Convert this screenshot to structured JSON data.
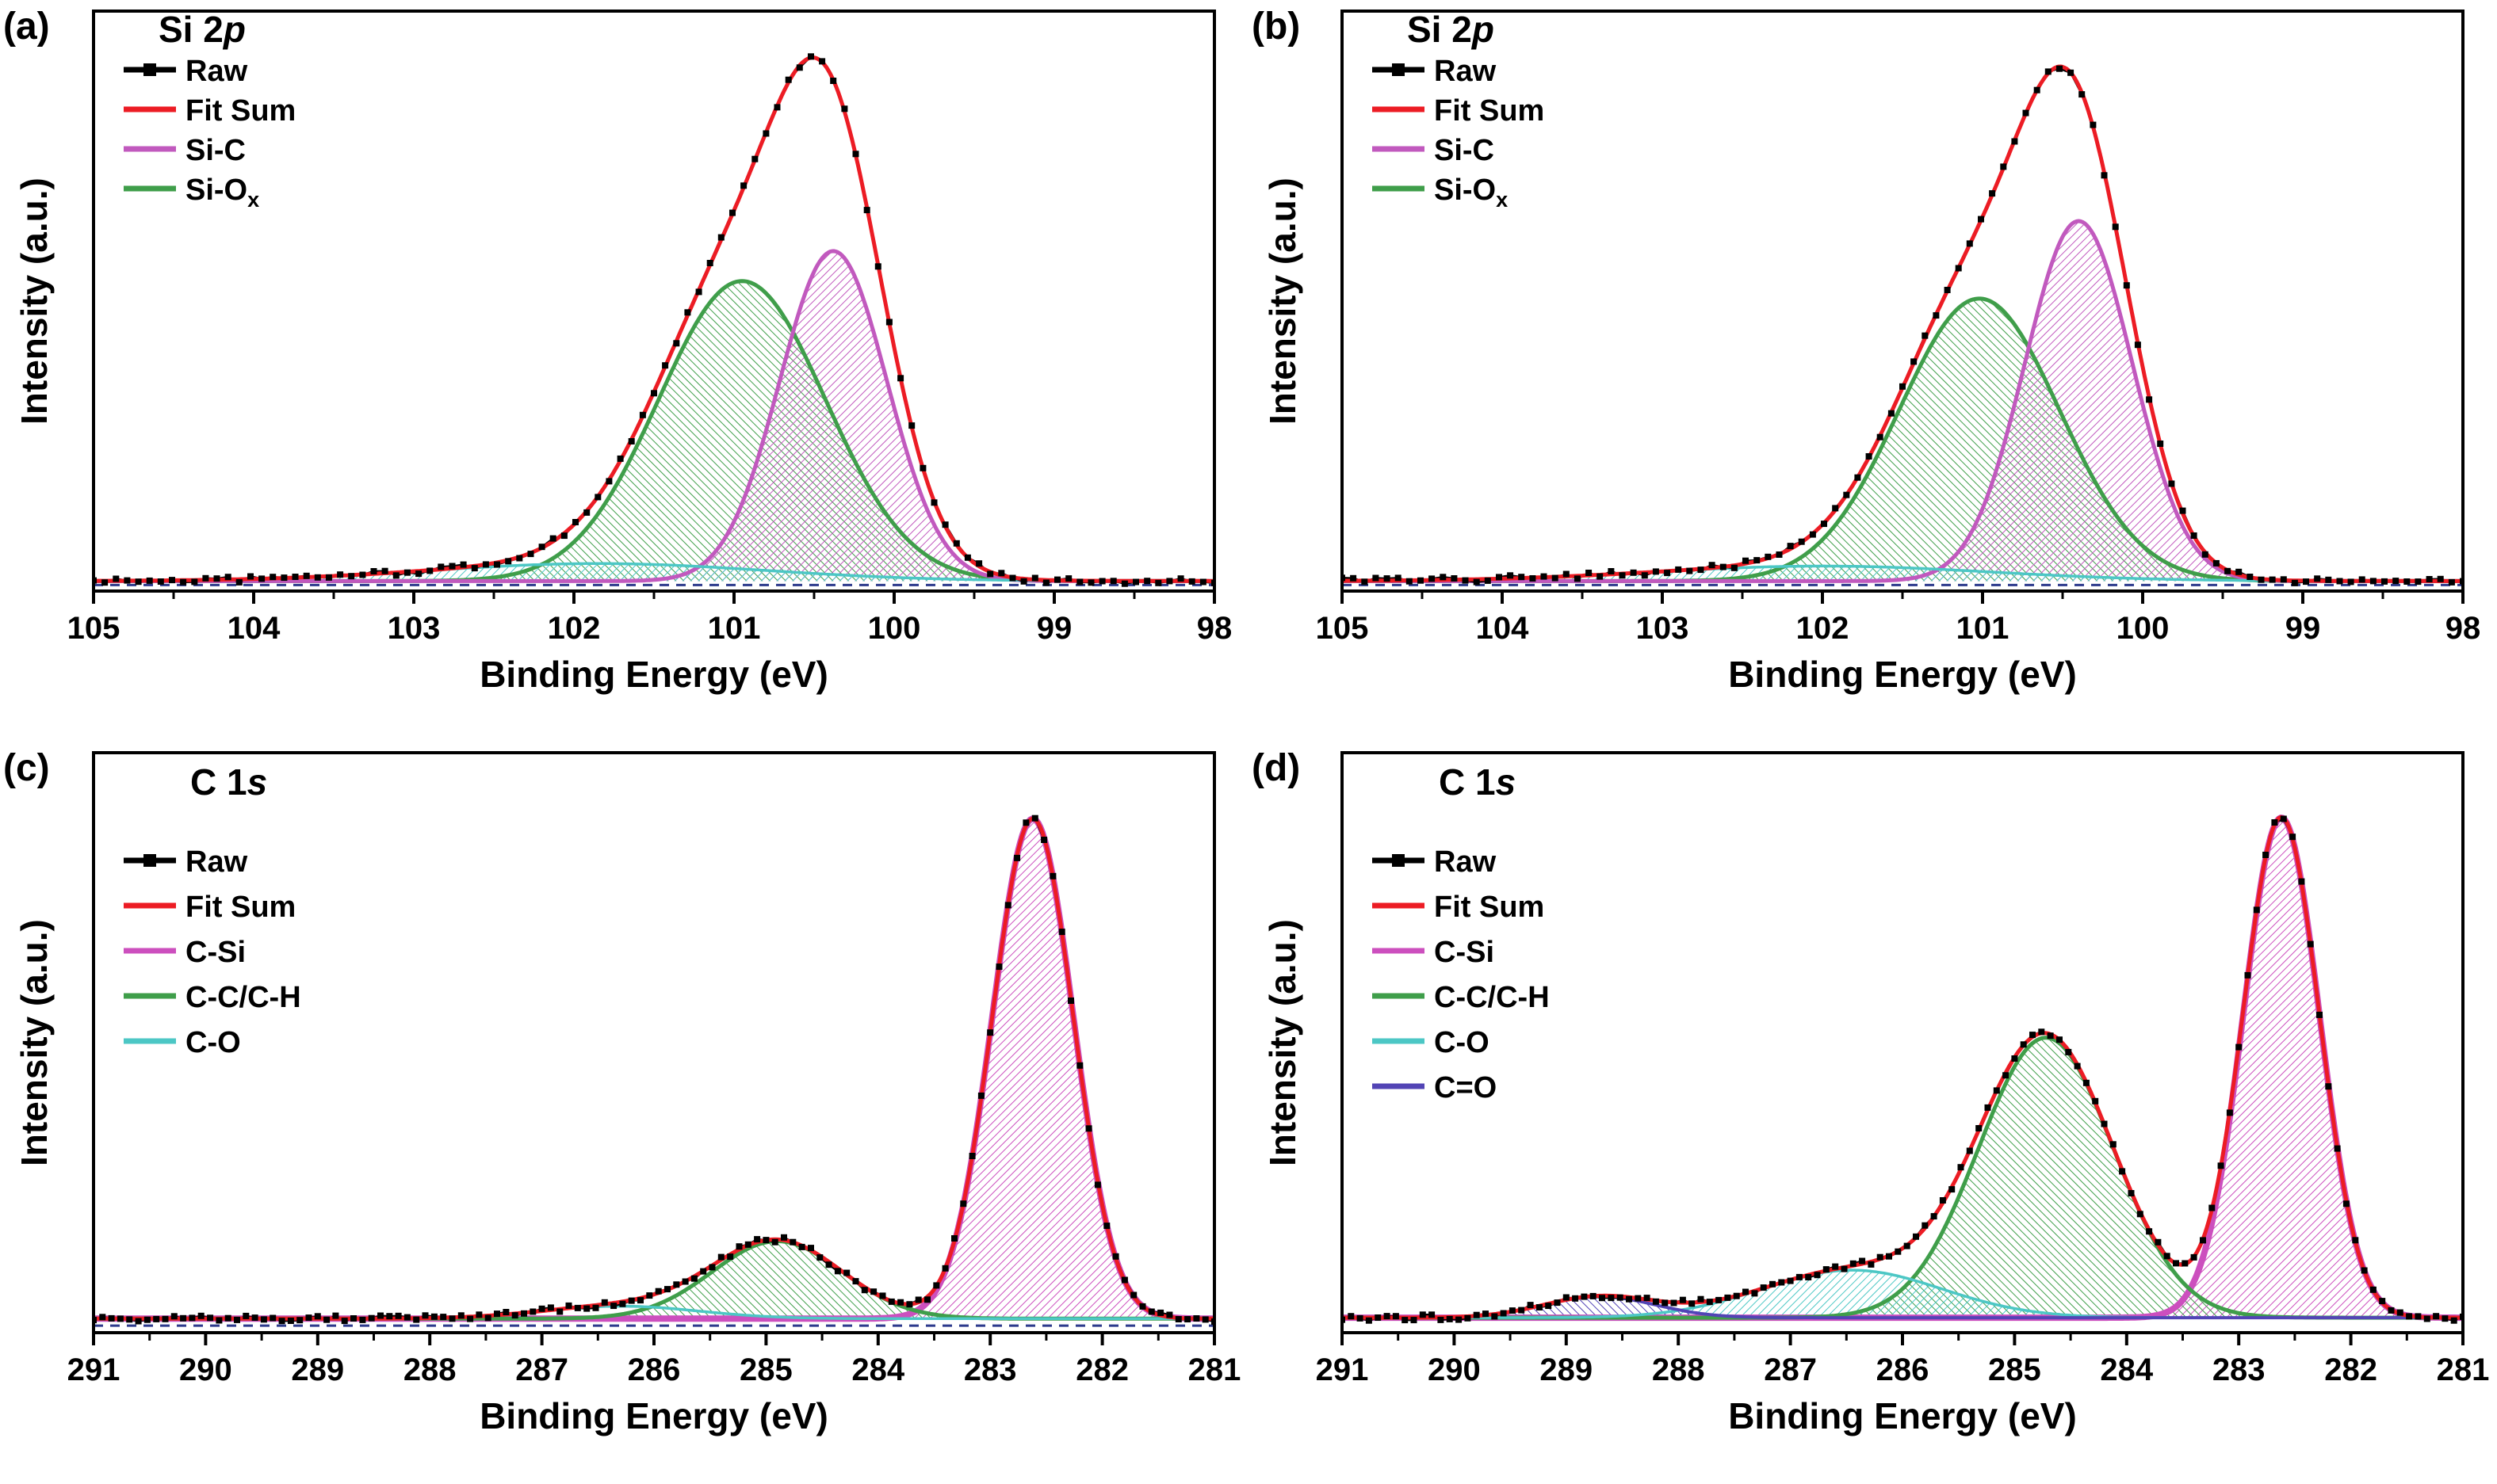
{
  "figure": {
    "background": "#ffffff"
  },
  "chart_data": [
    {
      "id": "a",
      "panel_label": "(a)",
      "type": "line",
      "title_prefix": "Si 2",
      "title_italic": "p",
      "xlabel": "Binding Energy (eV)",
      "ylabel": "Intensity (a.u.)",
      "x_range": [
        105,
        98
      ],
      "x_ticks": [
        105,
        104,
        103,
        102,
        101,
        100,
        99,
        98
      ],
      "x_minor_step": 0.5,
      "ylim": [
        0,
        1.16
      ],
      "baseline": 0.02,
      "fit_color": "#ec1c24",
      "raw": {
        "color": "#000000",
        "step": 0.07,
        "noise": 0.006
      },
      "extra_baseline": {
        "color": "#2c3a8c",
        "value": 0.012,
        "dash": "12,9"
      },
      "components": [
        {
          "name": "Si-Ox",
          "color": "#3f9e4a",
          "center": 100.95,
          "sigma": 0.52,
          "height": 0.6,
          "hatch": true,
          "angle": -45,
          "width": 5
        },
        {
          "name": "Si-C",
          "color": "#c159be",
          "center": 100.38,
          "sigma": 0.335,
          "height": 0.66,
          "hatch": true,
          "angle": 45,
          "width": 5
        },
        {
          "name": "background-hump",
          "color": "#4cc7c5",
          "center": 101.85,
          "sigma": 1.05,
          "height": 0.035,
          "hatch": true,
          "angle": 45,
          "width": 3.5
        }
      ],
      "legend": [
        {
          "label": "Raw",
          "color": "#000000",
          "marker": "square"
        },
        {
          "label": "Fit Sum",
          "color": "#ec1c24"
        },
        {
          "label": "Si-C",
          "color": "#c159be"
        },
        {
          "label": "Si-O",
          "sub": "x",
          "color": "#3f9e4a"
        }
      ]
    },
    {
      "id": "b",
      "panel_label": "(b)",
      "type": "line",
      "title_prefix": "Si 2",
      "title_italic": "p",
      "xlabel": "Binding Energy (eV)",
      "ylabel": "Intensity (a.u.)",
      "x_range": [
        105,
        98
      ],
      "x_ticks": [
        105,
        104,
        103,
        102,
        101,
        100,
        99,
        98
      ],
      "x_minor_step": 0.5,
      "ylim": [
        0,
        1.16
      ],
      "baseline": 0.02,
      "fit_color": "#ec1c24",
      "raw": {
        "color": "#000000",
        "step": 0.07,
        "noise": 0.006
      },
      "extra_baseline": {
        "color": "#2c3a8c",
        "value": 0.012,
        "dash": "12,9"
      },
      "components": [
        {
          "name": "Si-Ox",
          "color": "#3f9e4a",
          "center": 101.02,
          "sigma": 0.5,
          "height": 0.565,
          "hatch": true,
          "angle": -45,
          "width": 5
        },
        {
          "name": "Si-C",
          "color": "#c159be",
          "center": 100.4,
          "sigma": 0.335,
          "height": 0.72,
          "hatch": true,
          "angle": 45,
          "width": 5
        },
        {
          "name": "background-hump",
          "color": "#4cc7c5",
          "center": 102.0,
          "sigma": 1.05,
          "height": 0.03,
          "hatch": true,
          "angle": 45,
          "width": 3.5
        }
      ],
      "legend": [
        {
          "label": "Raw",
          "color": "#000000",
          "marker": "square"
        },
        {
          "label": "Fit Sum",
          "color": "#ec1c24"
        },
        {
          "label": "Si-C",
          "color": "#c159be"
        },
        {
          "label": "Si-O",
          "sub": "x",
          "color": "#3f9e4a"
        }
      ]
    },
    {
      "id": "c",
      "panel_label": "(c)",
      "type": "line",
      "title_prefix": "C 1",
      "title_italic": "s",
      "xlabel": "Binding Energy (eV)",
      "ylabel": "Intensity (a.u.)",
      "x_range": [
        291,
        281
      ],
      "x_ticks": [
        291,
        290,
        289,
        288,
        287,
        286,
        285,
        284,
        283,
        282,
        281
      ],
      "x_minor_step": 0.5,
      "ylim": [
        0,
        1.16
      ],
      "baseline": 0.028,
      "fit_color": "#ec1c24",
      "raw": {
        "color": "#000000",
        "step": 0.08,
        "noise": 0.006
      },
      "extra_baseline": {
        "color": "#2c3a8c",
        "value": 0.014,
        "dash": "12,9"
      },
      "components": [
        {
          "name": "C-Si",
          "color": "#cc4fbe",
          "center": 282.62,
          "sigma": 0.36,
          "height": 1.0,
          "hatch": true,
          "angle": 45,
          "width": 8
        },
        {
          "name": "C-C/C-H",
          "color": "#3f9e4a",
          "center": 284.9,
          "sigma": 0.58,
          "height": 0.155,
          "hatch": true,
          "angle": -45,
          "width": 5
        },
        {
          "name": "C-O",
          "color": "#4cc7c5",
          "center": 286.3,
          "sigma": 0.7,
          "height": 0.025,
          "hatch": false,
          "angle": 45,
          "width": 3.5
        }
      ],
      "legend": [
        {
          "label": "Raw",
          "color": "#000000",
          "marker": "square"
        },
        {
          "label": "Fit Sum",
          "color": "#ec1c24"
        },
        {
          "label": "C-Si",
          "color": "#cc4fbe"
        },
        {
          "label": "C-C/C-H",
          "color": "#3f9e4a"
        },
        {
          "label": "C-O",
          "color": "#4cc7c5"
        }
      ]
    },
    {
      "id": "d",
      "panel_label": "(d)",
      "type": "line",
      "title_prefix": "C 1",
      "title_italic": "s",
      "xlabel": "Binding Energy (eV)",
      "ylabel": "Intensity (a.u.)",
      "x_range": [
        291,
        281
      ],
      "x_ticks": [
        291,
        290,
        289,
        288,
        287,
        286,
        285,
        284,
        283,
        282,
        281
      ],
      "x_minor_step": 0.5,
      "ylim": [
        0,
        1.16
      ],
      "baseline": 0.03,
      "fit_color": "#ec1c24",
      "raw": {
        "color": "#000000",
        "step": 0.08,
        "noise": 0.006
      },
      "components": [
        {
          "name": "C-Si",
          "color": "#cc4fbe",
          "center": 282.62,
          "sigma": 0.34,
          "height": 1.0,
          "hatch": true,
          "angle": 45,
          "width": 8
        },
        {
          "name": "C-C/C-H",
          "color": "#3f9e4a",
          "center": 284.72,
          "sigma": 0.6,
          "height": 0.56,
          "hatch": true,
          "angle": -45,
          "width": 5
        },
        {
          "name": "C-O",
          "color": "#4cc7c5",
          "center": 286.45,
          "sigma": 0.8,
          "height": 0.095,
          "hatch": true,
          "angle": 45,
          "width": 3.5
        },
        {
          "name": "C=O",
          "color": "#5244b5",
          "center": 288.7,
          "sigma": 0.5,
          "height": 0.042,
          "hatch": true,
          "angle": -45,
          "width": 4
        }
      ],
      "legend": [
        {
          "label": "Raw",
          "color": "#000000",
          "marker": "square"
        },
        {
          "label": "Fit Sum",
          "color": "#ec1c24"
        },
        {
          "label": "C-Si",
          "color": "#cc4fbe"
        },
        {
          "label": "C-C/C-H",
          "color": "#3f9e4a"
        },
        {
          "label": "C-O",
          "color": "#4cc7c5"
        },
        {
          "label": "C=O",
          "color": "#5244b5"
        }
      ]
    }
  ]
}
